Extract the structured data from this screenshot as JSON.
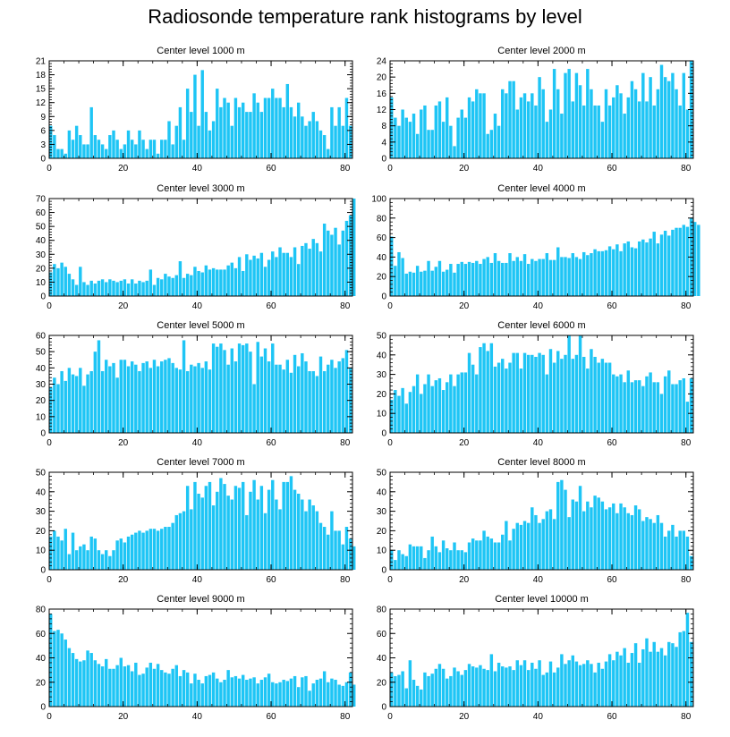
{
  "figure_title": "Radiosonde temperature rank histograms by level",
  "colors": {
    "bar": "#1ec5f5",
    "axis": "#000000",
    "background": "#ffffff"
  },
  "chart_data": [
    {
      "type": "bar",
      "title": "Center level 1000 m",
      "xlim": [
        0,
        82
      ],
      "ylim": [
        0,
        21
      ],
      "xticks": [
        0,
        20,
        40,
        60,
        80
      ],
      "yticks": [
        0,
        3,
        6,
        9,
        12,
        15,
        18,
        21
      ],
      "values": [
        7,
        5,
        2,
        2,
        1,
        6,
        4,
        7,
        5,
        3,
        3,
        11,
        5,
        4,
        3,
        2,
        5,
        6,
        4,
        2,
        3,
        6,
        4,
        3,
        6,
        4,
        2,
        4,
        4,
        1,
        4,
        4,
        8,
        3,
        7,
        11,
        4,
        15,
        10,
        18,
        7,
        19,
        10,
        6,
        8,
        15,
        11,
        13,
        12,
        7,
        13,
        11,
        12,
        10,
        10,
        14,
        12,
        10,
        13,
        13,
        15,
        13,
        13,
        11,
        16,
        11,
        9,
        12,
        9,
        7,
        8,
        10,
        8,
        6,
        5,
        2,
        11,
        7,
        11,
        7,
        13,
        7
      ]
    },
    {
      "type": "bar",
      "title": "Center level 2000 m",
      "xlim": [
        0,
        82
      ],
      "ylim": [
        0,
        24
      ],
      "xticks": [
        0,
        20,
        40,
        60,
        80
      ],
      "yticks": [
        0,
        4,
        8,
        12,
        16,
        20,
        24
      ],
      "values": [
        15,
        10,
        8,
        12,
        10,
        9,
        11,
        6,
        12,
        13,
        7,
        7,
        13,
        14,
        9,
        15,
        8,
        3,
        10,
        12,
        10,
        15,
        14,
        17,
        16,
        16,
        6,
        7,
        11,
        8,
        17,
        16,
        19,
        19,
        12,
        15,
        16,
        14,
        16,
        13,
        20,
        17,
        9,
        12,
        22,
        17,
        11,
        21,
        22,
        14,
        21,
        18,
        13,
        22,
        17,
        13,
        13,
        9,
        17,
        13,
        15,
        18,
        16,
        11,
        15,
        19,
        17,
        14,
        21,
        14,
        20,
        13,
        17,
        23,
        20,
        19,
        21,
        17,
        13,
        21,
        12,
        24
      ]
    },
    {
      "type": "bar",
      "title": "Center level 3000 m",
      "xlim": [
        0,
        82
      ],
      "ylim": [
        0,
        70
      ],
      "xticks": [
        0,
        20,
        40,
        60,
        80
      ],
      "yticks": [
        0,
        10,
        20,
        30,
        40,
        50,
        60,
        70
      ],
      "values": [
        17,
        23,
        20,
        24,
        21,
        16,
        12,
        8,
        21,
        10,
        8,
        11,
        9,
        11,
        12,
        10,
        12,
        11,
        10,
        11,
        12,
        9,
        12,
        9,
        11,
        10,
        11,
        19,
        8,
        13,
        12,
        16,
        14,
        13,
        15,
        25,
        13,
        16,
        15,
        21,
        18,
        17,
        22,
        19,
        20,
        19,
        19,
        19,
        22,
        24,
        20,
        28,
        18,
        30,
        26,
        29,
        27,
        31,
        21,
        26,
        32,
        28,
        35,
        31,
        31,
        28,
        35,
        23,
        36,
        38,
        34,
        41,
        38,
        32,
        52,
        47,
        44,
        49,
        37,
        47,
        54,
        58,
        70
      ]
    },
    {
      "type": "bar",
      "title": "Center level 4000 m",
      "xlim": [
        0,
        82
      ],
      "ylim": [
        0,
        100
      ],
      "xticks": [
        0,
        20,
        40,
        60,
        80
      ],
      "yticks": [
        0,
        20,
        40,
        60,
        80,
        100
      ],
      "values": [
        61,
        31,
        45,
        39,
        23,
        25,
        24,
        31,
        25,
        26,
        36,
        26,
        30,
        36,
        25,
        27,
        33,
        24,
        33,
        35,
        33,
        35,
        34,
        36,
        33,
        38,
        40,
        34,
        44,
        36,
        34,
        34,
        44,
        36,
        40,
        36,
        43,
        33,
        38,
        36,
        38,
        38,
        44,
        37,
        37,
        50,
        40,
        40,
        39,
        44,
        40,
        38,
        45,
        42,
        44,
        48,
        46,
        46,
        47,
        51,
        48,
        53,
        46,
        54,
        56,
        50,
        49,
        56,
        58,
        55,
        59,
        66,
        54,
        63,
        67,
        62,
        68,
        70,
        70,
        73,
        71,
        80,
        76,
        73
      ]
    },
    {
      "type": "bar",
      "title": "Center level 5000 m",
      "xlim": [
        0,
        82
      ],
      "ylim": [
        0,
        60
      ],
      "xticks": [
        0,
        20,
        40,
        60,
        80
      ],
      "yticks": [
        0,
        10,
        20,
        30,
        40,
        50,
        60
      ],
      "values": [
        28,
        34,
        30,
        38,
        32,
        40,
        36,
        35,
        40,
        29,
        36,
        38,
        50,
        57,
        38,
        45,
        41,
        43,
        34,
        45,
        45,
        41,
        44,
        42,
        38,
        43,
        44,
        40,
        45,
        41,
        44,
        45,
        46,
        43,
        40,
        39,
        57,
        38,
        42,
        41,
        43,
        40,
        44,
        39,
        55,
        53,
        55,
        51,
        42,
        52,
        44,
        55,
        54,
        55,
        50,
        30,
        56,
        47,
        52,
        44,
        55,
        42,
        42,
        39,
        45,
        37,
        48,
        41,
        49,
        44,
        38,
        38,
        35,
        47,
        38,
        42,
        45,
        40,
        44,
        46,
        51,
        40
      ]
    },
    {
      "type": "bar",
      "title": "Center level 6000 m",
      "xlim": [
        0,
        82
      ],
      "ylim": [
        0,
        50
      ],
      "xticks": [
        0,
        20,
        40,
        60,
        80
      ],
      "yticks": [
        0,
        10,
        20,
        30,
        40,
        50
      ],
      "values": [
        17,
        22,
        19,
        23,
        15,
        21,
        24,
        30,
        20,
        25,
        30,
        24,
        27,
        28,
        22,
        26,
        30,
        24,
        30,
        31,
        31,
        41,
        35,
        30,
        44,
        46,
        42,
        46,
        34,
        36,
        38,
        33,
        36,
        41,
        41,
        33,
        41,
        40,
        40,
        39,
        41,
        40,
        30,
        43,
        36,
        42,
        38,
        40,
        50,
        38,
        40,
        50,
        39,
        33,
        43,
        39,
        36,
        38,
        36,
        36,
        30,
        29,
        30,
        26,
        32,
        26,
        27,
        27,
        24,
        29,
        31,
        26,
        26,
        20,
        29,
        32,
        25,
        25,
        27,
        28,
        16,
        28
      ]
    },
    {
      "type": "bar",
      "title": "Center level 7000 m",
      "xlim": [
        0,
        82
      ],
      "ylim": [
        0,
        50
      ],
      "xticks": [
        0,
        20,
        40,
        60,
        80
      ],
      "yticks": [
        0,
        10,
        20,
        30,
        40,
        50
      ],
      "values": [
        17,
        20,
        17,
        15,
        21,
        8,
        19,
        10,
        12,
        13,
        10,
        17,
        16,
        10,
        8,
        10,
        7,
        10,
        15,
        16,
        14,
        17,
        18,
        19,
        20,
        19,
        20,
        21,
        21,
        20,
        21,
        22,
        22,
        24,
        28,
        29,
        30,
        43,
        31,
        45,
        39,
        37,
        43,
        45,
        33,
        40,
        47,
        44,
        38,
        36,
        43,
        42,
        45,
        28,
        40,
        46,
        36,
        43,
        29,
        41,
        46,
        36,
        31,
        45,
        45,
        48,
        41,
        39,
        36,
        30,
        36,
        33,
        30,
        24,
        22,
        18,
        30,
        20,
        20,
        13,
        22,
        16,
        12
      ]
    },
    {
      "type": "bar",
      "title": "Center level 8000 m",
      "xlim": [
        0,
        82
      ],
      "ylim": [
        0,
        50
      ],
      "xticks": [
        0,
        20,
        40,
        60,
        80
      ],
      "yticks": [
        0,
        10,
        20,
        30,
        40,
        50
      ],
      "values": [
        10,
        5,
        10,
        8,
        7,
        13,
        12,
        12,
        12,
        6,
        10,
        17,
        12,
        9,
        15,
        11,
        10,
        14,
        10,
        10,
        9,
        14,
        16,
        15,
        15,
        20,
        17,
        16,
        14,
        14,
        18,
        25,
        15,
        21,
        24,
        23,
        25,
        24,
        32,
        28,
        24,
        26,
        30,
        31,
        26,
        45,
        46,
        41,
        27,
        36,
        35,
        43,
        30,
        35,
        32,
        38,
        37,
        35,
        31,
        32,
        34,
        29,
        34,
        32,
        29,
        28,
        33,
        31,
        25,
        27,
        26,
        24,
        28,
        24,
        17,
        20,
        23,
        17,
        20,
        20,
        17,
        7
      ]
    },
    {
      "type": "bar",
      "title": "Center level 9000 m",
      "xlim": [
        0,
        82
      ],
      "ylim": [
        0,
        80
      ],
      "xticks": [
        0,
        20,
        40,
        60,
        80
      ],
      "yticks": [
        0,
        20,
        40,
        60,
        80
      ],
      "values": [
        76,
        62,
        63,
        60,
        55,
        48,
        44,
        39,
        37,
        38,
        46,
        44,
        38,
        35,
        33,
        39,
        31,
        31,
        34,
        40,
        33,
        34,
        29,
        36,
        26,
        27,
        32,
        36,
        31,
        35,
        30,
        28,
        27,
        31,
        34,
        25,
        30,
        28,
        19,
        27,
        22,
        19,
        25,
        26,
        28,
        23,
        20,
        22,
        30,
        24,
        25,
        23,
        26,
        22,
        23,
        24,
        19,
        22,
        24,
        27,
        20,
        19,
        20,
        22,
        21,
        23,
        25,
        16,
        24,
        25,
        13,
        19,
        22,
        23,
        29,
        20,
        23,
        22,
        18,
        17,
        20,
        28,
        18
      ]
    },
    {
      "type": "bar",
      "title": "Center level 10000 m",
      "xlim": [
        0,
        82
      ],
      "ylim": [
        0,
        80
      ],
      "xticks": [
        0,
        20,
        40,
        60,
        80
      ],
      "yticks": [
        0,
        20,
        40,
        60,
        80
      ],
      "values": [
        28,
        25,
        26,
        29,
        15,
        38,
        22,
        17,
        14,
        28,
        25,
        27,
        31,
        35,
        31,
        23,
        25,
        32,
        29,
        26,
        30,
        35,
        33,
        32,
        34,
        31,
        30,
        43,
        29,
        36,
        33,
        32,
        33,
        30,
        38,
        34,
        38,
        30,
        36,
        31,
        38,
        26,
        28,
        37,
        28,
        32,
        43,
        35,
        38,
        42,
        37,
        34,
        35,
        38,
        35,
        28,
        36,
        31,
        37,
        43,
        38,
        45,
        42,
        48,
        36,
        44,
        52,
        36,
        47,
        56,
        45,
        53,
        45,
        48,
        42,
        53,
        52,
        49,
        61,
        62,
        77,
        53
      ]
    }
  ]
}
